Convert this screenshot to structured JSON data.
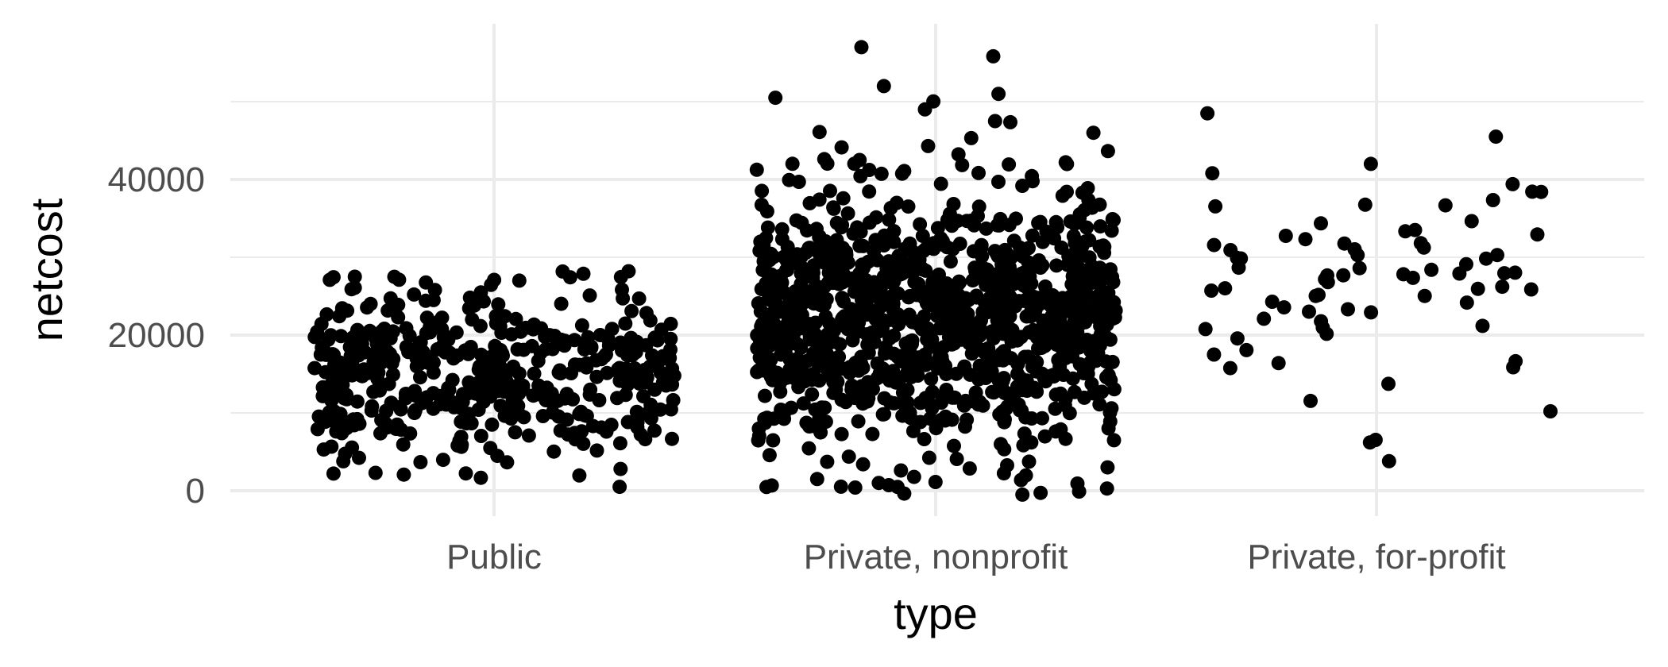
{
  "chart_data": {
    "type": "scatter",
    "title": "",
    "xlabel": "type",
    "ylabel": "netcost",
    "categories": [
      "Public",
      "Private, nonprofit",
      "Private, for-profit"
    ],
    "ylim": [
      -2000,
      58000
    ],
    "y_ticks": [
      0,
      20000,
      40000
    ],
    "y_tick_labels": [
      "0",
      "20000",
      "40000"
    ],
    "grid": true,
    "legend": "none",
    "point_color": "#000000",
    "groups": [
      {
        "category": "Public",
        "jitter": true,
        "n_points": 480,
        "typical_range": [
          3000,
          24000
        ],
        "center": 15000,
        "min": 500,
        "max": 28200,
        "highlighted_points": [
          {
            "y": 28200
          },
          {
            "y": 27500
          },
          {
            "y": 27100
          },
          {
            "y": 27000
          },
          {
            "y": 25800
          },
          {
            "y": 24500
          },
          {
            "y": 2800
          },
          {
            "y": 2300
          },
          {
            "y": 500
          }
        ]
      },
      {
        "category": "Private, nonprofit",
        "jitter": true,
        "n_points": 1100,
        "typical_range": [
          5000,
          40000
        ],
        "center": 22000,
        "min": -500,
        "max": 57000,
        "highlighted_points": [
          {
            "y": 57000
          },
          {
            "y": 52000
          },
          {
            "y": 51000
          },
          {
            "y": 50500
          },
          {
            "y": 49000
          },
          {
            "y": 47500
          },
          {
            "y": 46000
          },
          {
            "y": 3000
          },
          {
            "y": -500
          }
        ]
      },
      {
        "category": "Private, for-profit",
        "jitter": true,
        "n_points": 75,
        "typical_range": [
          10000,
          42000
        ],
        "center": 27000,
        "min": 3800,
        "max": 48500,
        "highlighted_points": [
          {
            "y": 48500
          },
          {
            "y": 45500
          },
          {
            "y": 42000
          },
          {
            "y": 40800
          },
          {
            "y": 38400
          },
          {
            "y": 10200
          },
          {
            "y": 6200
          },
          {
            "y": 3800
          }
        ]
      }
    ]
  }
}
